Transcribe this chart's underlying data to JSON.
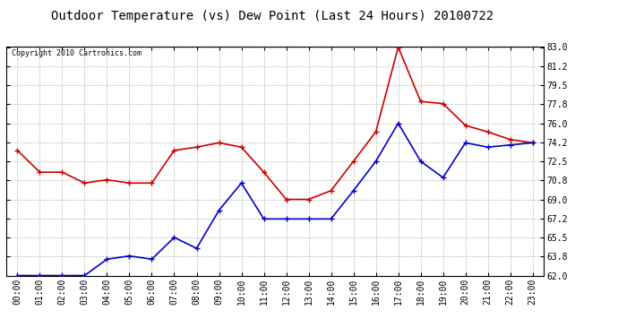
{
  "title": "Outdoor Temperature (vs) Dew Point (Last 24 Hours) 20100722",
  "copyright": "Copyright 2010 Cartronics.com",
  "hours": [
    "00:00",
    "01:00",
    "02:00",
    "03:00",
    "04:00",
    "05:00",
    "06:00",
    "07:00",
    "08:00",
    "09:00",
    "10:00",
    "11:00",
    "12:00",
    "13:00",
    "14:00",
    "15:00",
    "16:00",
    "17:00",
    "18:00",
    "19:00",
    "20:00",
    "21:00",
    "22:00",
    "23:00"
  ],
  "temp": [
    73.5,
    71.5,
    71.5,
    70.5,
    70.8,
    70.5,
    70.5,
    73.5,
    73.8,
    74.2,
    73.8,
    71.5,
    69.0,
    69.0,
    69.8,
    72.5,
    75.2,
    83.0,
    78.0,
    77.8,
    75.8,
    75.2,
    74.5,
    74.2
  ],
  "dew": [
    62.0,
    62.0,
    62.0,
    62.0,
    63.5,
    63.8,
    63.5,
    65.5,
    64.5,
    68.0,
    70.5,
    67.2,
    67.2,
    67.2,
    67.2,
    69.8,
    72.5,
    76.0,
    72.5,
    71.0,
    74.2,
    73.8,
    74.0,
    74.2
  ],
  "ylim_min": 62.0,
  "ylim_max": 83.0,
  "yticks": [
    62.0,
    63.8,
    65.5,
    67.2,
    69.0,
    70.8,
    72.5,
    74.2,
    76.0,
    77.8,
    79.5,
    81.2,
    83.0
  ],
  "temp_color": "#cc0000",
  "dew_color": "#0000cc",
  "bg_color": "#ffffff",
  "grid_color": "#bbbbbb",
  "title_fontsize": 10,
  "copyright_fontsize": 6,
  "tick_fontsize": 7
}
